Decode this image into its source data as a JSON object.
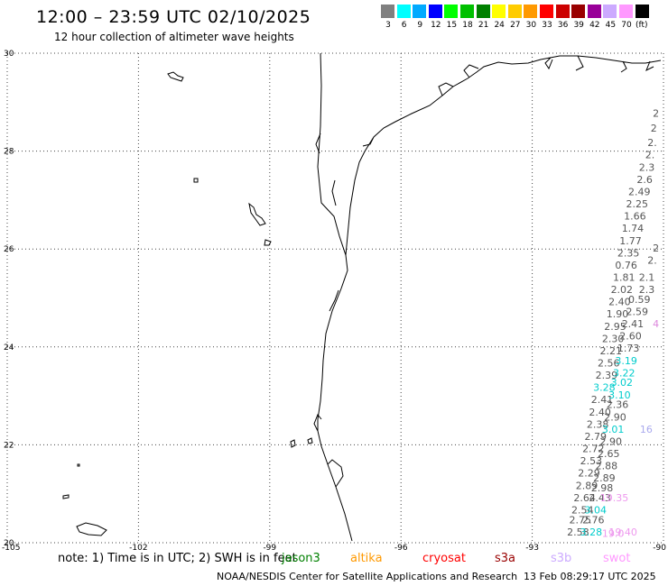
{
  "header": {
    "title": "12:00 – 23:59 UTC 02/10/2025",
    "subtitle": "12 hour collection of altimeter wave heights"
  },
  "legend": {
    "unit": "(ft)",
    "bins": [
      {
        "label": "3",
        "color": "#808080"
      },
      {
        "label": "6",
        "color": "#00ffff"
      },
      {
        "label": "9",
        "color": "#00aaff"
      },
      {
        "label": "12",
        "color": "#0000ff"
      },
      {
        "label": "15",
        "color": "#00ff00"
      },
      {
        "label": "18",
        "color": "#00c000"
      },
      {
        "label": "21",
        "color": "#008000"
      },
      {
        "label": "24",
        "color": "#ffff00"
      },
      {
        "label": "27",
        "color": "#ffcc00"
      },
      {
        "label": "30",
        "color": "#ff9900"
      },
      {
        "label": "33",
        "color": "#ff0000"
      },
      {
        "label": "36",
        "color": "#cc0000"
      },
      {
        "label": "39",
        "color": "#990000"
      },
      {
        "label": "42",
        "color": "#990099"
      },
      {
        "label": "45",
        "color": "#ccaaff"
      },
      {
        "label": "70",
        "color": "#ff99ff"
      },
      {
        "label": "",
        "color": "#000000"
      }
    ]
  },
  "map": {
    "lon_range": [
      -105,
      -90
    ],
    "lat_range": [
      20,
      30
    ],
    "lon_ticks": [
      "-105",
      "-102",
      "-99",
      "-96",
      "-93",
      "-90"
    ],
    "lat_ticks": [
      "30",
      "28",
      "26",
      "24",
      "22",
      "20"
    ],
    "grid": "dotted",
    "readings": [
      {
        "text": "2",
        "lon": -90.1,
        "lat": 28.7,
        "color": "#555555"
      },
      {
        "text": "2",
        "lon": -90.15,
        "lat": 28.4,
        "color": "#555555"
      },
      {
        "text": "2.",
        "lon": -90.15,
        "lat": 28.1,
        "color": "#555555"
      },
      {
        "text": "2.",
        "lon": -90.2,
        "lat": 27.85,
        "color": "#555555"
      },
      {
        "text": "2.3",
        "lon": -90.2,
        "lat": 27.6,
        "color": "#555555"
      },
      {
        "text": "2.6",
        "lon": -90.25,
        "lat": 27.35,
        "color": "#555555"
      },
      {
        "text": "2.49",
        "lon": -90.3,
        "lat": 27.1,
        "color": "#555555"
      },
      {
        "text": "2.25",
        "lon": -90.35,
        "lat": 26.85,
        "color": "#555555"
      },
      {
        "text": "1.66",
        "lon": -90.4,
        "lat": 26.6,
        "color": "#555555"
      },
      {
        "text": "1.74",
        "lon": -90.45,
        "lat": 26.35,
        "color": "#555555"
      },
      {
        "text": "1.77",
        "lon": -90.5,
        "lat": 26.1,
        "color": "#555555"
      },
      {
        "text": "2.35",
        "lon": -90.55,
        "lat": 25.85,
        "color": "#555555"
      },
      {
        "text": "0.76",
        "lon": -90.6,
        "lat": 25.6,
        "color": "#555555"
      },
      {
        "text": "1.81",
        "lon": -90.65,
        "lat": 25.35,
        "color": "#555555"
      },
      {
        "text": "2.02",
        "lon": -90.7,
        "lat": 25.1,
        "color": "#555555"
      },
      {
        "text": "2.40",
        "lon": -90.75,
        "lat": 24.85,
        "color": "#555555"
      },
      {
        "text": "1.90",
        "lon": -90.8,
        "lat": 24.6,
        "color": "#555555"
      },
      {
        "text": "2.95",
        "lon": -90.85,
        "lat": 24.35,
        "color": "#555555"
      },
      {
        "text": "2.30",
        "lon": -90.9,
        "lat": 24.1,
        "color": "#555555"
      },
      {
        "text": "2.21",
        "lon": -90.95,
        "lat": 23.85,
        "color": "#555555"
      },
      {
        "text": "2.56",
        "lon": -91.0,
        "lat": 23.6,
        "color": "#555555"
      },
      {
        "text": "2.39",
        "lon": -91.05,
        "lat": 23.35,
        "color": "#555555"
      },
      {
        "text": "3.28",
        "lon": -91.1,
        "lat": 23.1,
        "color": "#00cccc"
      },
      {
        "text": "2.41",
        "lon": -91.15,
        "lat": 22.85,
        "color": "#555555"
      },
      {
        "text": "2.40",
        "lon": -91.2,
        "lat": 22.6,
        "color": "#555555"
      },
      {
        "text": "2.38",
        "lon": -91.25,
        "lat": 22.35,
        "color": "#555555"
      },
      {
        "text": "2.79",
        "lon": -91.3,
        "lat": 22.1,
        "color": "#555555"
      },
      {
        "text": "2.72",
        "lon": -91.35,
        "lat": 21.85,
        "color": "#555555"
      },
      {
        "text": "2.53",
        "lon": -91.4,
        "lat": 21.6,
        "color": "#555555"
      },
      {
        "text": "2.29",
        "lon": -91.45,
        "lat": 21.35,
        "color": "#555555"
      },
      {
        "text": "2.89",
        "lon": -91.5,
        "lat": 21.1,
        "color": "#555555"
      },
      {
        "text": "2.64",
        "lon": -91.55,
        "lat": 20.85,
        "color": "#555555"
      },
      {
        "text": "2.54",
        "lon": -91.6,
        "lat": 20.6,
        "color": "#555555"
      },
      {
        "text": "2.75",
        "lon": -91.65,
        "lat": 20.4,
        "color": "#555555"
      },
      {
        "text": "2.58",
        "lon": -91.7,
        "lat": 20.15,
        "color": "#555555"
      },
      {
        "text": "2",
        "lon": -90.1,
        "lat": 25.95,
        "color": "#555555"
      },
      {
        "text": "2.",
        "lon": -90.15,
        "lat": 25.7,
        "color": "#555555"
      },
      {
        "text": "2.1",
        "lon": -90.2,
        "lat": 25.35,
        "color": "#555555"
      },
      {
        "text": "2.3",
        "lon": -90.2,
        "lat": 25.1,
        "color": "#555555"
      },
      {
        "text": "0.59",
        "lon": -90.3,
        "lat": 24.9,
        "color": "#555555"
      },
      {
        "text": "2.59",
        "lon": -90.35,
        "lat": 24.65,
        "color": "#555555"
      },
      {
        "text": "2.41",
        "lon": -90.45,
        "lat": 24.4,
        "color": "#555555"
      },
      {
        "text": "2.60",
        "lon": -90.5,
        "lat": 24.15,
        "color": "#555555"
      },
      {
        "text": "1.73",
        "lon": -90.55,
        "lat": 23.9,
        "color": "#555555"
      },
      {
        "text": "3.19",
        "lon": -90.6,
        "lat": 23.65,
        "color": "#00cccc"
      },
      {
        "text": "3.22",
        "lon": -90.65,
        "lat": 23.4,
        "color": "#00cccc"
      },
      {
        "text": "3.02",
        "lon": -90.7,
        "lat": 23.2,
        "color": "#00cccc"
      },
      {
        "text": "3.10",
        "lon": -90.75,
        "lat": 22.95,
        "color": "#00cccc"
      },
      {
        "text": "2.36",
        "lon": -90.8,
        "lat": 22.75,
        "color": "#555555"
      },
      {
        "text": "2.90",
        "lon": -90.85,
        "lat": 22.5,
        "color": "#555555"
      },
      {
        "text": "3.01",
        "lon": -90.9,
        "lat": 22.25,
        "color": "#00cccc"
      },
      {
        "text": "2.90",
        "lon": -90.95,
        "lat": 22.0,
        "color": "#555555"
      },
      {
        "text": "2.65",
        "lon": -91.0,
        "lat": 21.75,
        "color": "#555555"
      },
      {
        "text": "2.88",
        "lon": -91.05,
        "lat": 21.5,
        "color": "#555555"
      },
      {
        "text": "2.89",
        "lon": -91.1,
        "lat": 21.25,
        "color": "#555555"
      },
      {
        "text": "2.98",
        "lon": -91.15,
        "lat": 21.05,
        "color": "#555555"
      },
      {
        "text": "2.43",
        "lon": -91.2,
        "lat": 20.85,
        "color": "#555555"
      },
      {
        "text": "3.04",
        "lon": -91.3,
        "lat": 20.6,
        "color": "#00cccc"
      },
      {
        "text": "2.76",
        "lon": -91.35,
        "lat": 20.4,
        "color": "#555555"
      },
      {
        "text": "3.28",
        "lon": -91.4,
        "lat": 20.15,
        "color": "#00cccc"
      },
      {
        "text": "4",
        "lon": -90.1,
        "lat": 24.4,
        "color": "#dd88dd"
      },
      {
        "text": "16",
        "lon": -90.25,
        "lat": 22.25,
        "color": "#aaaaee"
      },
      {
        "text": "19.35",
        "lon": -90.8,
        "lat": 20.85,
        "color": "#ee99ee"
      },
      {
        "text": "19.40",
        "lon": -90.6,
        "lat": 20.15,
        "color": "#ee99ee"
      },
      {
        "text": "19.0",
        "lon": -90.9,
        "lat": 20.12,
        "color": "#ee99ee"
      }
    ]
  },
  "footer": {
    "note": "note:  1) Time is in UTC; 2) SWH is in feet",
    "satellites": [
      {
        "name": "jason3",
        "color": "#008000"
      },
      {
        "name": "altika",
        "color": "#ff9900"
      },
      {
        "name": "cryosat",
        "color": "#ff0000"
      },
      {
        "name": "s3a",
        "color": "#990000"
      },
      {
        "name": "s3b",
        "color": "#ccaaff"
      },
      {
        "name": "swot",
        "color": "#ff99ff"
      }
    ],
    "credit": "NOAA/NESDIS Center for Satellite Applications and Research",
    "timestamp": "13 Feb 08:29:17 UTC 2025"
  }
}
